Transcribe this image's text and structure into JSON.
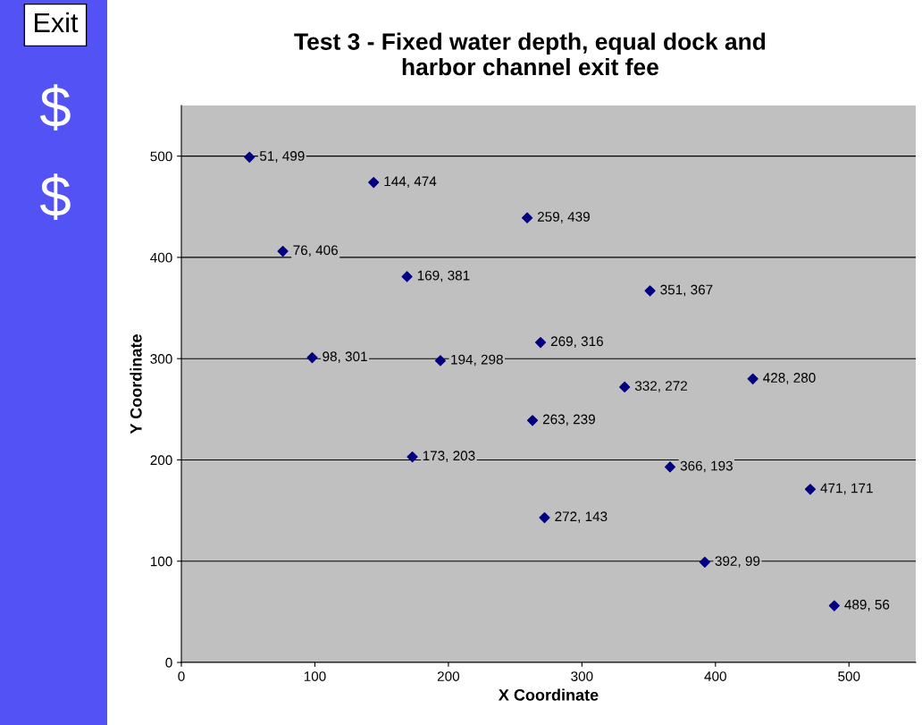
{
  "chart_data": {
    "type": "scatter",
    "title": "Test 3 - Fixed water depth, equal dock and\nharbor channel exit fee",
    "xlabel": "X Coordinate",
    "ylabel": "Y Coordinate",
    "annotations": [
      "Exit",
      "$",
      "$"
    ],
    "x": [
      51,
      144,
      259,
      76,
      169,
      351,
      98,
      194,
      269,
      332,
      428,
      263,
      173,
      366,
      471,
      272,
      392,
      489
    ],
    "values": [
      499,
      474,
      439,
      406,
      381,
      367,
      301,
      298,
      316,
      272,
      280,
      239,
      203,
      193,
      171,
      143,
      99,
      56
    ],
    "value_labels": [
      "51, 499",
      "144, 474",
      "259, 439",
      "76, 406",
      "169, 381",
      "351, 367",
      "98, 301",
      "194, 298",
      "269, 316",
      "332, 272",
      "428, 280",
      "263, 239",
      "173, 203",
      "366, 193",
      "471, 171",
      "272, 143",
      "392, 99",
      "489, 56"
    ],
    "color": "#000080",
    "marker": "diamond",
    "xlim": [
      0,
      550
    ],
    "xticks": [
      0,
      100,
      200,
      300,
      400,
      500
    ],
    "ylim": [
      0,
      550
    ],
    "yticks": [
      0,
      100,
      200,
      300,
      400,
      500
    ],
    "grid": "y",
    "legend": false
  }
}
